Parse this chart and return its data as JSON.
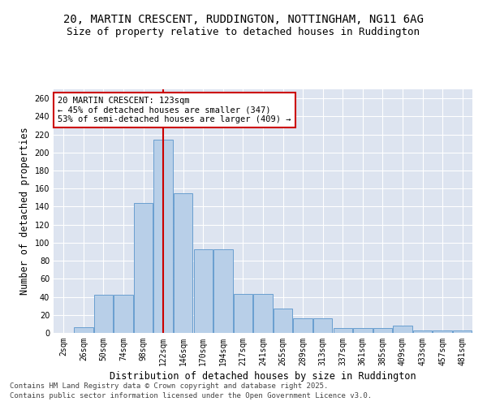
{
  "title1": "20, MARTIN CRESCENT, RUDDINGTON, NOTTINGHAM, NG11 6AG",
  "title2": "Size of property relative to detached houses in Ruddington",
  "xlabel": "Distribution of detached houses by size in Ruddington",
  "ylabel": "Number of detached properties",
  "bar_color": "#b8cfe8",
  "bar_edge_color": "#6a9fd0",
  "bg_color": "#dde4f0",
  "grid_color": "white",
  "annotation_box_color": "#cc0000",
  "vline_color": "#cc0000",
  "annotation_text": "20 MARTIN CRESCENT: 123sqm\n← 45% of detached houses are smaller (347)\n53% of semi-detached houses are larger (409) →",
  "footer1": "Contains HM Land Registry data © Crown copyright and database right 2025.",
  "footer2": "Contains public sector information licensed under the Open Government Licence v3.0.",
  "categories": [
    "2sqm",
    "26sqm",
    "50sqm",
    "74sqm",
    "98sqm",
    "122sqm",
    "146sqm",
    "170sqm",
    "194sqm",
    "217sqm",
    "241sqm",
    "265sqm",
    "289sqm",
    "313sqm",
    "337sqm",
    "361sqm",
    "385sqm",
    "409sqm",
    "433sqm",
    "457sqm",
    "481sqm"
  ],
  "values": [
    0,
    6,
    42,
    42,
    144,
    214,
    155,
    93,
    93,
    43,
    43,
    27,
    16,
    16,
    5,
    5,
    5,
    8,
    3,
    3,
    3
  ],
  "vline_x": 5,
  "ylim": [
    0,
    270
  ],
  "yticks": [
    0,
    20,
    40,
    60,
    80,
    100,
    120,
    140,
    160,
    180,
    200,
    220,
    240,
    260
  ],
  "title_fontsize": 10,
  "subtitle_fontsize": 9,
  "axis_fontsize": 8.5,
  "tick_fontsize": 7,
  "annotation_fontsize": 7.5,
  "footer_fontsize": 6.5
}
